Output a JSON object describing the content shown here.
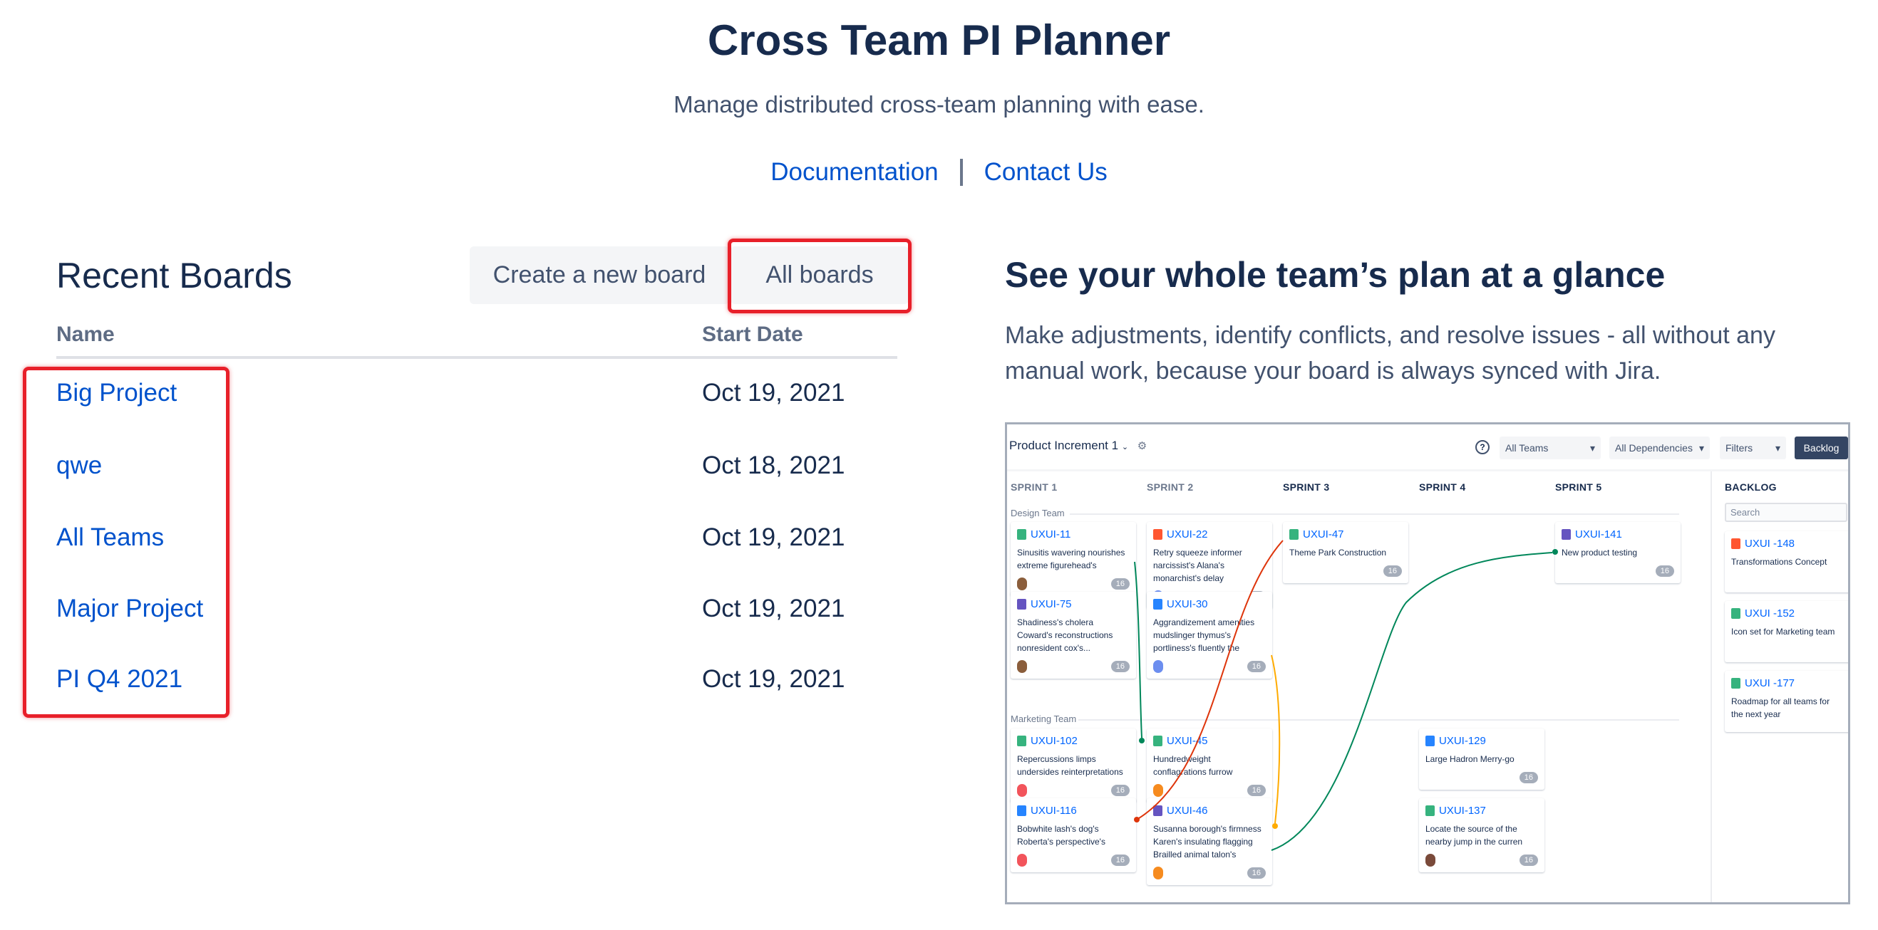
{
  "header": {
    "title": "Cross Team PI Planner",
    "subtitle": "Manage distributed cross-team planning with ease.",
    "links": [
      "Documentation",
      "Contact Us"
    ]
  },
  "recent": {
    "title": "Recent Boards",
    "create_label": "Create a new board",
    "all_label": "All boards",
    "columns": [
      "Name",
      "Start Date"
    ],
    "rows": [
      {
        "name": "Big Project",
        "date": "Oct 19, 2021"
      },
      {
        "name": "qwe",
        "date": "Oct 18, 2021"
      },
      {
        "name": "All Teams",
        "date": "Oct 19, 2021"
      },
      {
        "name": "Major Project",
        "date": "Oct 19, 2021"
      },
      {
        "name": "PI Q4 2021",
        "date": "Oct 19, 2021"
      }
    ]
  },
  "promo": {
    "title": "See your whole team’s plan at a glance",
    "text": "Make adjustments, identify conflicts, and resolve issues - all without any manual work, because your board is always synced with Jira."
  },
  "board": {
    "increment": "Product Increment 1",
    "filters": [
      "All Teams",
      "All Dependencies",
      "Filters"
    ],
    "backlog_button": "Backlog",
    "sprints": [
      "SPRINT 1",
      "SPRINT 2",
      "SPRINT 3",
      "SPRINT 4",
      "SPRINT 5"
    ],
    "backlog_title": "BACKLOG",
    "search_placeholder": "Search",
    "type_colors": {
      "story": "#36B37E",
      "bug": "#FF5630",
      "task": "#2684FF",
      "epic": "#6554C0"
    },
    "teams": [
      {
        "name": "Design Team",
        "cards": [
          {
            "key": "UXUI-11",
            "type": "story",
            "sprint": 1,
            "summary": "Sinusitis wavering nourishes extreme figurehead's",
            "avatar": "#8B5E3C",
            "points": "16"
          },
          {
            "key": "UXUI-75",
            "type": "epic",
            "sprint": 1,
            "summary": "Shadiness's cholera Coward's reconstructions nonresident cox's...",
            "avatar": "#8B5E3C",
            "points": "16"
          },
          {
            "key": "UXUI-22",
            "type": "bug",
            "sprint": 2,
            "summary": "Retry squeeze informer narcissist's Alana's monarchist's delay",
            "avatar": "#6C8EEF",
            "points": "16"
          },
          {
            "key": "UXUI-30",
            "type": "task",
            "sprint": 2,
            "summary": "Aggrandizement amenities mudslinger thymus's portliness's fluently the",
            "avatar": "#6C8EEF",
            "points": "16"
          },
          {
            "key": "UXUI-47",
            "type": "story",
            "sprint": 3,
            "summary": "Theme Park Construction",
            "avatar": null,
            "points": "16"
          },
          {
            "key": "UXUI-141",
            "type": "epic",
            "sprint": 5,
            "summary": "New product testing",
            "avatar": null,
            "points": "16"
          }
        ]
      },
      {
        "name": "Marketing Team",
        "cards": [
          {
            "key": "UXUI-102",
            "type": "story",
            "sprint": 1,
            "summary": "Repercussions limps undersides reinterpretations",
            "avatar": "#F2545B",
            "points": "16"
          },
          {
            "key": "UXUI-116",
            "type": "task",
            "sprint": 1,
            "summary": "Bobwhite lash's dog's Roberta's perspective's",
            "avatar": "#F2545B",
            "points": "16"
          },
          {
            "key": "UXUI-45",
            "type": "story",
            "sprint": 2,
            "summary": "Hundredweight conflagrations furrow",
            "avatar": "#F68B1F",
            "points": "16"
          },
          {
            "key": "UXUI-46",
            "type": "epic",
            "sprint": 2,
            "summary": "Susanna borough's firmness Karen's insulating flagging Brailled animal talon's",
            "avatar": "#F68B1F",
            "points": "16"
          },
          {
            "key": "UXUI-129",
            "type": "task",
            "sprint": 4,
            "summary": "Large Hadron Merry-go",
            "avatar": null,
            "points": "16"
          },
          {
            "key": "UXUI-137",
            "type": "story",
            "sprint": 4,
            "summary": "Locate the source of the nearby jump in the curren",
            "avatar": "#7A4A3A",
            "points": "16"
          }
        ]
      }
    ],
    "backlog": [
      {
        "key": "UXUI -148",
        "type": "bug",
        "summary": "Transformations Concept"
      },
      {
        "key": "UXUI -152",
        "type": "story",
        "summary": "Icon set for Marketing team"
      },
      {
        "key": "UXUI -177",
        "type": "story",
        "summary": "Roadmap for all teams for the next year"
      }
    ],
    "dependency_colors": [
      "#00875A",
      "#DE350B",
      "#FFAB00",
      "#00875A"
    ]
  }
}
